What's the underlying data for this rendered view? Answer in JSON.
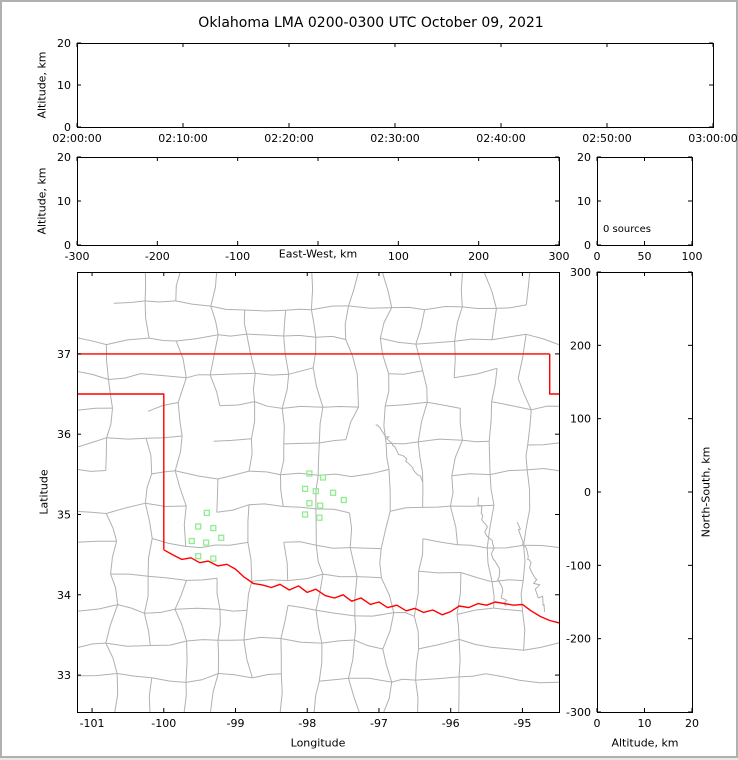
{
  "title": "Oklahoma LMA 0200-0300 UTC October 09, 2021",
  "colors": {
    "figure_border": "#b0b0b0",
    "background": "#ffffff",
    "axis": "#000000",
    "county_lines": "#b0b0b0",
    "state_border": "#ff0000",
    "station_marker": "#90ee90"
  },
  "chart_data": [
    {
      "type": "scatter",
      "panel": "time-height",
      "ylabel": "Altitude, km",
      "xlim": [
        "02:00:00",
        "03:00:00"
      ],
      "ylim": [
        0,
        20
      ],
      "xticks": [
        "02:00:00",
        "02:10:00",
        "02:20:00",
        "02:30:00",
        "02:40:00",
        "02:50:00",
        "03:00:00"
      ],
      "yticks": [
        0,
        10,
        20
      ],
      "points": []
    },
    {
      "type": "scatter",
      "panel": "east-west-height",
      "xlabel": "East-West, km",
      "ylabel": "Altitude, km",
      "xlim": [
        -300,
        300
      ],
      "ylim": [
        0,
        20
      ],
      "xticks": [
        -300,
        -200,
        -100,
        0,
        100,
        200,
        300
      ],
      "xtick_labels": [
        "-300",
        "-200",
        "-100",
        "",
        "100",
        "200",
        "300"
      ],
      "yticks": [
        0,
        10,
        20
      ],
      "points": []
    },
    {
      "type": "histogram",
      "panel": "altitude-source-count",
      "annotation": "0 sources",
      "source_count": 0,
      "xlim": [
        0,
        100
      ],
      "ylim": [
        0,
        20
      ],
      "xticks": [
        0,
        50,
        100
      ],
      "yticks": [
        0,
        10,
        20
      ],
      "values": []
    },
    {
      "type": "map",
      "panel": "plan-view",
      "xlabel": "Longitude",
      "ylabel": "Latitude",
      "xlim": [
        -101.21,
        -94.49
      ],
      "ylim": [
        32.54,
        38.02
      ],
      "xticks": [
        -101,
        -100,
        -99,
        -98,
        -97,
        -96,
        -95
      ],
      "yticks": [
        33,
        34,
        35,
        36,
        37
      ],
      "points": [],
      "stations": [
        [
          -97.97,
          35.51
        ],
        [
          -97.78,
          35.46
        ],
        [
          -98.03,
          35.32
        ],
        [
          -97.88,
          35.29
        ],
        [
          -97.64,
          35.27
        ],
        [
          -97.49,
          35.18
        ],
        [
          -97.97,
          35.14
        ],
        [
          -97.82,
          35.11
        ],
        [
          -98.03,
          35.0
        ],
        [
          -97.83,
          34.96
        ],
        [
          -99.4,
          35.02
        ],
        [
          -99.52,
          34.85
        ],
        [
          -99.31,
          34.83
        ],
        [
          -99.61,
          34.67
        ],
        [
          -99.41,
          34.65
        ],
        [
          -99.2,
          34.71
        ],
        [
          -99.52,
          34.48
        ],
        [
          -99.31,
          34.45
        ]
      ],
      "state_border": [
        [
          [
            -101.21,
            37.0
          ],
          [
            -94.62,
            37.0
          ]
        ],
        [
          [
            -94.62,
            37.0
          ],
          [
            -94.62,
            36.5
          ],
          [
            -94.49,
            36.5
          ]
        ],
        [
          [
            -101.21,
            36.5
          ],
          [
            -100.0,
            36.5
          ],
          [
            -100.0,
            34.56
          ]
        ],
        [
          [
            -100.0,
            34.56
          ],
          [
            -99.88,
            34.5
          ],
          [
            -99.75,
            34.44
          ],
          [
            -99.62,
            34.46
          ],
          [
            -99.5,
            34.4
          ],
          [
            -99.38,
            34.42
          ],
          [
            -99.25,
            34.36
          ],
          [
            -99.12,
            34.38
          ],
          [
            -99.0,
            34.32
          ],
          [
            -98.88,
            34.22
          ],
          [
            -98.75,
            34.14
          ],
          [
            -98.62,
            34.12
          ],
          [
            -98.5,
            34.09
          ],
          [
            -98.38,
            34.13
          ],
          [
            -98.25,
            34.06
          ],
          [
            -98.12,
            34.11
          ],
          [
            -98.0,
            34.03
          ],
          [
            -97.88,
            34.07
          ],
          [
            -97.75,
            33.99
          ],
          [
            -97.62,
            33.96
          ],
          [
            -97.5,
            34.0
          ],
          [
            -97.38,
            33.92
          ],
          [
            -97.25,
            33.96
          ],
          [
            -97.12,
            33.88
          ],
          [
            -97.0,
            33.91
          ],
          [
            -96.88,
            33.84
          ],
          [
            -96.75,
            33.87
          ],
          [
            -96.62,
            33.8
          ],
          [
            -96.5,
            33.83
          ],
          [
            -96.38,
            33.78
          ],
          [
            -96.25,
            33.81
          ],
          [
            -96.12,
            33.75
          ],
          [
            -96.0,
            33.79
          ],
          [
            -95.88,
            33.86
          ],
          [
            -95.75,
            33.84
          ],
          [
            -95.62,
            33.89
          ],
          [
            -95.5,
            33.87
          ],
          [
            -95.38,
            33.91
          ],
          [
            -95.25,
            33.89
          ],
          [
            -95.12,
            33.87
          ],
          [
            -95.0,
            33.88
          ],
          [
            -94.88,
            33.8
          ],
          [
            -94.75,
            33.73
          ],
          [
            -94.62,
            33.68
          ],
          [
            -94.49,
            33.65
          ]
        ]
      ]
    },
    {
      "type": "scatter",
      "panel": "north-south-height",
      "xlabel": "Altitude, km",
      "ylabel": "North-South, km",
      "xlim": [
        0,
        20
      ],
      "ylim": [
        -300,
        300
      ],
      "xticks": [
        0,
        10,
        20
      ],
      "yticks": [
        -300,
        -200,
        -100,
        0,
        100,
        200,
        300
      ],
      "points": []
    }
  ]
}
